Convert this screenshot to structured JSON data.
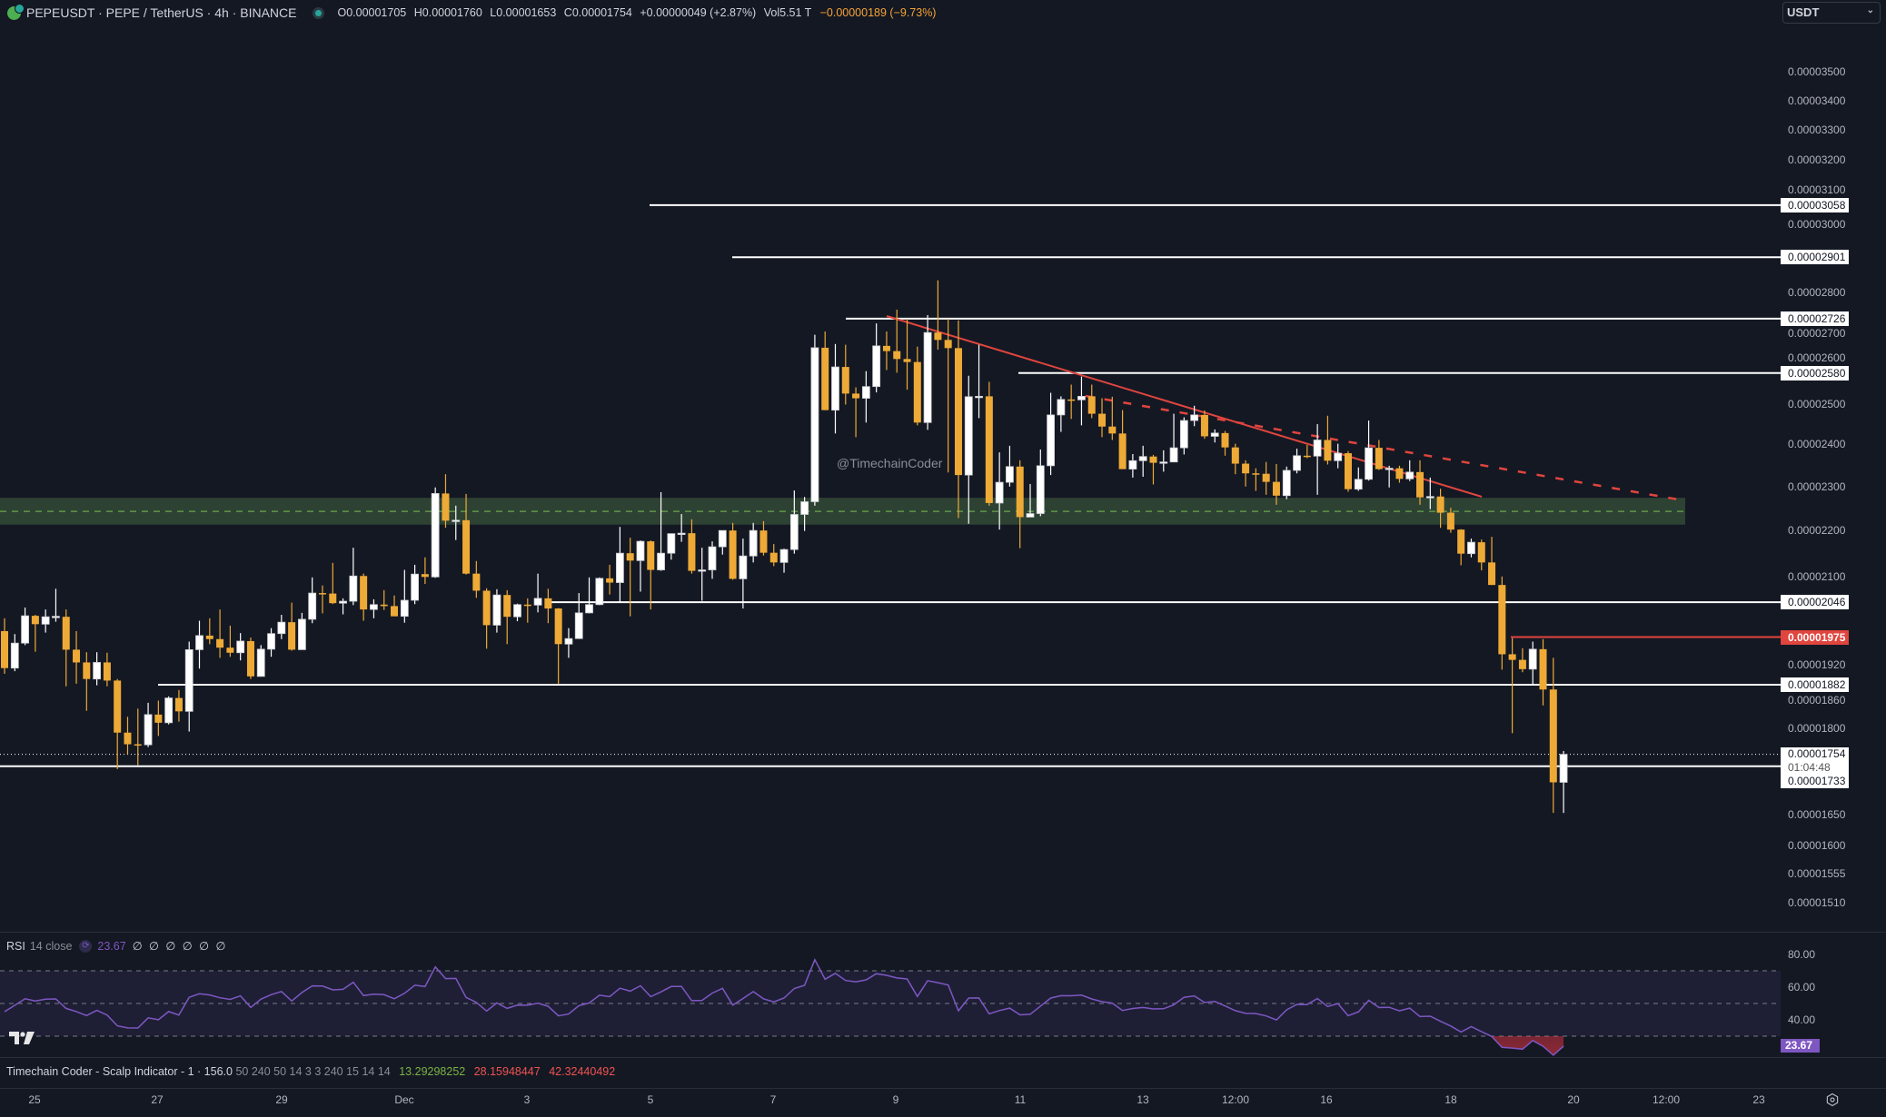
{
  "header": {
    "symbol_title": "PEPEUSDT · PEPE / TetherUS · 4h · BINANCE",
    "open_label": "O",
    "open": "0.00001705",
    "high_label": "H",
    "high": "0.00001760",
    "low_label": "L",
    "low": "0.00001653",
    "close_label": "C",
    "close": "0.00001754",
    "change": "+0.00000049 (+2.87%)",
    "vol_label": "Vol",
    "volume": "5.51 T",
    "day_change": "−0.00000189 (−9.73%)",
    "currency_select": "USDT",
    "icons": [
      "pepe-logo-icon",
      "market-status-icon",
      "chevron-down-icon"
    ]
  },
  "watermark": "@TimechainCoder",
  "colors": {
    "background": "#141823",
    "bull_candle": "#ffffff",
    "bear_candle": "#eeaa36",
    "level_line": "#ffffff",
    "resistance_line": "#e0453e",
    "zone_fill": "#2d4233",
    "zone_mid": "#6aa84f",
    "rsi_line": "#7e57c2",
    "rsi_band": "#1e1f35",
    "change_negative": "#f7a335"
  },
  "price_axis": {
    "scale": "log",
    "ticks": [
      "0.00003500",
      "0.00003400",
      "0.00003300",
      "0.00003200",
      "0.00003100",
      "0.00003000",
      "0.00002800",
      "0.00002700",
      "0.00002600",
      "0.00002500",
      "0.00002400",
      "0.00002300",
      "0.00002200",
      "0.00002100",
      "0.00001920",
      "0.00001860",
      "0.00001800",
      "0.00001650",
      "0.00001600",
      "0.00001555",
      "0.00001510"
    ]
  },
  "levels": [
    {
      "value": 3.058e-05,
      "label": "0.00003058",
      "style": "white"
    },
    {
      "value": 2.901e-05,
      "label": "0.00002901",
      "style": "white"
    },
    {
      "value": 2.726e-05,
      "label": "0.00002726",
      "style": "white"
    },
    {
      "value": 2.58e-05,
      "label": "0.00002580",
      "style": "white"
    },
    {
      "value": 2.046e-05,
      "label": "0.00002046",
      "style": "white"
    },
    {
      "value": 1.975e-05,
      "label": "0.00001975",
      "style": "red"
    },
    {
      "value": 1.882e-05,
      "label": "0.00001882",
      "style": "white"
    },
    {
      "value": 1.733e-05,
      "label": "0.00001733",
      "style": "white"
    }
  ],
  "current_price": {
    "value": 1.754e-05,
    "label": "0.00001754",
    "countdown": "01:04:48",
    "level_label": "0.00001733"
  },
  "zone": {
    "top": 2.274e-05,
    "bottom": 2.213e-05,
    "mid": 2.243e-05
  },
  "rsi": {
    "name": "RSI",
    "params": "14 close",
    "value": "23.67",
    "na_values": "∅ ∅ ∅ ∅ ∅ ∅",
    "ticks": [
      "80.00",
      "60.00",
      "40.00"
    ],
    "bands": [
      70,
      50,
      30
    ]
  },
  "indicator": {
    "name": "Timechain Coder - Scalp Indicator - 1 · 156.0",
    "params": "50 240 50 14 3 3 240 15 14 14",
    "value1": "13.29298252",
    "value2": "28.15948447",
    "value3": "42.32440492"
  },
  "time_axis": [
    "25",
    "27",
    "29",
    "Dec",
    "3",
    "5",
    "7",
    "9",
    "11",
    "13",
    "12:00",
    "16",
    "18",
    "20",
    "12:00",
    "23"
  ],
  "chart_data": {
    "type": "candlestick",
    "interval": "4h",
    "y_scale": "log",
    "ylim": [
      1.51e-05,
      3.5e-05
    ],
    "fields": [
      "open",
      "high",
      "low",
      "close"
    ],
    "candles": [
      [
        1.987e-05,
        2.013e-05,
        1.903e-05,
        1.914e-05
      ],
      [
        1.914e-05,
        1.981e-05,
        1.908e-05,
        1.963e-05
      ],
      [
        1.963e-05,
        2.035e-05,
        1.959e-05,
        2.018e-05
      ],
      [
        2.018e-05,
        2.02e-05,
        1.946e-05,
        2.001e-05
      ],
      [
        2.001e-05,
        2.031e-05,
        1.984e-05,
        2.016e-05
      ],
      [
        2.016e-05,
        2.074e-05,
        2.006e-05,
        2.017e-05
      ],
      [
        2.016e-05,
        2.031e-05,
        1.879e-05,
        1.95e-05
      ],
      [
        1.95e-05,
        1.987e-05,
        1.884e-05,
        1.925e-05
      ],
      [
        1.925e-05,
        1.945e-05,
        1.833e-05,
        1.893e-05
      ],
      [
        1.893e-05,
        1.945e-05,
        1.881e-05,
        1.925e-05
      ],
      [
        1.925e-05,
        1.944e-05,
        1.879e-05,
        1.89e-05
      ],
      [
        1.89e-05,
        1.893e-05,
        1.728e-05,
        1.793e-05
      ],
      [
        1.793e-05,
        1.822e-05,
        1.754e-05,
        1.772e-05
      ],
      [
        1.772e-05,
        1.837e-05,
        1.735e-05,
        1.771e-05
      ],
      [
        1.771e-05,
        1.848e-05,
        1.767e-05,
        1.826e-05
      ],
      [
        1.826e-05,
        1.852e-05,
        1.787e-05,
        1.811e-05
      ],
      [
        1.811e-05,
        1.86e-05,
        1.808e-05,
        1.857e-05
      ],
      [
        1.857e-05,
        1.872e-05,
        1.813e-05,
        1.832e-05
      ],
      [
        1.832e-05,
        1.966e-05,
        1.795e-05,
        1.95e-05
      ],
      [
        1.95e-05,
        2.008e-05,
        1.913e-05,
        1.978e-05
      ],
      [
        1.978e-05,
        2.013e-05,
        1.961e-05,
        1.971e-05
      ],
      [
        1.971e-05,
        2.031e-05,
        1.934e-05,
        1.954e-05
      ],
      [
        1.954e-05,
        1.998e-05,
        1.936e-05,
        1.944e-05
      ],
      [
        1.944e-05,
        1.983e-05,
        1.929e-05,
        1.967e-05
      ],
      [
        1.967e-05,
        1.974e-05,
        1.893e-05,
        1.898e-05
      ],
      [
        1.898e-05,
        1.959e-05,
        1.898e-05,
        1.951e-05
      ],
      [
        1.951e-05,
        1.993e-05,
        1.936e-05,
        1.982e-05
      ],
      [
        1.982e-05,
        2.02e-05,
        1.971e-05,
        2.005e-05
      ],
      [
        2.005e-05,
        2.045e-05,
        1.948e-05,
        1.95e-05
      ],
      [
        1.95e-05,
        2.024e-05,
        1.95e-05,
        2.011e-05
      ],
      [
        2.011e-05,
        2.098e-05,
        2.003e-05,
        2.065e-05
      ],
      [
        2.065e-05,
        2.081e-05,
        2.023e-05,
        2.064e-05
      ],
      [
        2.064e-05,
        2.129e-05,
        2.042e-05,
        2.044e-05
      ],
      [
        2.044e-05,
        2.054e-05,
        2.021e-05,
        2.048e-05
      ],
      [
        2.048e-05,
        2.162e-05,
        2.04e-05,
        2.101e-05
      ],
      [
        2.101e-05,
        2.106e-05,
        2.008e-05,
        2.031e-05
      ],
      [
        2.031e-05,
        2.052e-05,
        2.013e-05,
        2.041e-05
      ],
      [
        2.041e-05,
        2.071e-05,
        2.03e-05,
        2.038e-05
      ],
      [
        2.038e-05,
        2.06e-05,
        2.017e-05,
        2.017e-05
      ],
      [
        2.017e-05,
        2.114e-05,
        2.004e-05,
        2.05e-05
      ],
      [
        2.05e-05,
        2.125e-05,
        2.042e-05,
        2.105e-05
      ],
      [
        2.105e-05,
        2.141e-05,
        2.084e-05,
        2.099e-05
      ],
      [
        2.099e-05,
        2.298e-05,
        2.097e-05,
        2.284e-05
      ],
      [
        2.284e-05,
        2.329e-05,
        2.206e-05,
        2.222e-05
      ],
      [
        2.222e-05,
        2.256e-05,
        2.179e-05,
        2.223e-05
      ],
      [
        2.223e-05,
        2.283e-05,
        2.104e-05,
        2.106e-05
      ],
      [
        2.106e-05,
        2.133e-05,
        2.055e-05,
        2.07e-05
      ],
      [
        2.07e-05,
        2.075e-05,
        1.952e-05,
        1.999e-05
      ],
      [
        1.999e-05,
        2.073e-05,
        1.984e-05,
        2.061e-05
      ],
      [
        2.061e-05,
        2.071e-05,
        1.961e-05,
        2.016e-05
      ],
      [
        2.016e-05,
        2.043e-05,
        2.007e-05,
        2.041e-05
      ],
      [
        2.041e-05,
        2.054e-05,
        2.004e-05,
        2.04e-05
      ],
      [
        2.04e-05,
        2.106e-05,
        2.025e-05,
        2.054e-05
      ],
      [
        2.054e-05,
        2.074e-05,
        2.003e-05,
        2.033e-05
      ],
      [
        2.033e-05,
        2.034e-05,
        1.884e-05,
        1.961e-05
      ],
      [
        1.961e-05,
        1.993e-05,
        1.934e-05,
        1.972e-05
      ],
      [
        1.972e-05,
        2.065e-05,
        1.972e-05,
        2.024e-05
      ],
      [
        2.024e-05,
        2.098e-05,
        2.023e-05,
        2.041e-05
      ],
      [
        2.041e-05,
        2.098e-05,
        2.04e-05,
        2.096e-05
      ],
      [
        2.096e-05,
        2.125e-05,
        2.062e-05,
        2.087e-05
      ],
      [
        2.087e-05,
        2.208e-05,
        2.047e-05,
        2.15e-05
      ],
      [
        2.15e-05,
        2.184e-05,
        2.017e-05,
        2.134e-05
      ],
      [
        2.134e-05,
        2.178e-05,
        2.068e-05,
        2.176e-05
      ],
      [
        2.176e-05,
        2.178e-05,
        2.031e-05,
        2.114e-05
      ],
      [
        2.114e-05,
        2.287e-05,
        2.112e-05,
        2.15e-05
      ],
      [
        2.15e-05,
        2.193e-05,
        2.136e-05,
        2.193e-05
      ],
      [
        2.193e-05,
        2.237e-05,
        2.175e-05,
        2.194e-05
      ],
      [
        2.194e-05,
        2.225e-05,
        2.106e-05,
        2.112e-05
      ],
      [
        2.112e-05,
        2.162e-05,
        2.049e-05,
        2.114e-05
      ],
      [
        2.114e-05,
        2.176e-05,
        2.095e-05,
        2.164e-05
      ],
      [
        2.164e-05,
        2.2e-05,
        2.147e-05,
        2.2e-05
      ],
      [
        2.2e-05,
        2.217e-05,
        2.093e-05,
        2.095e-05
      ],
      [
        2.095e-05,
        2.182e-05,
        2.033e-05,
        2.144e-05
      ],
      [
        2.144e-05,
        2.217e-05,
        2.13e-05,
        2.2e-05
      ],
      [
        2.2e-05,
        2.221e-05,
        2.145e-05,
        2.151e-05
      ],
      [
        2.151e-05,
        2.17e-05,
        2.122e-05,
        2.13e-05
      ],
      [
        2.13e-05,
        2.16e-05,
        2.108e-05,
        2.158e-05
      ],
      [
        2.158e-05,
        2.291e-05,
        2.149e-05,
        2.236e-05
      ],
      [
        2.236e-05,
        2.276e-05,
        2.199e-05,
        2.265e-05
      ],
      [
        2.265e-05,
        2.682e-05,
        2.256e-05,
        2.647e-05
      ],
      [
        2.647e-05,
        2.691e-05,
        2.485e-05,
        2.485e-05
      ],
      [
        2.485e-05,
        2.657e-05,
        2.427e-05,
        2.596e-05
      ],
      [
        2.596e-05,
        2.655e-05,
        2.499e-05,
        2.527e-05
      ],
      [
        2.527e-05,
        2.543e-05,
        2.418e-05,
        2.515e-05
      ],
      [
        2.515e-05,
        2.585e-05,
        2.454e-05,
        2.545e-05
      ],
      [
        2.545e-05,
        2.713e-05,
        2.53e-05,
        2.652e-05
      ],
      [
        2.652e-05,
        2.691e-05,
        2.588e-05,
        2.638e-05
      ],
      [
        2.638e-05,
        2.751e-05,
        2.581e-05,
        2.617e-05
      ],
      [
        2.617e-05,
        2.726e-05,
        2.537e-05,
        2.609e-05
      ],
      [
        2.609e-05,
        2.65e-05,
        2.447e-05,
        2.454e-05
      ],
      [
        2.454e-05,
        2.736e-05,
        2.436e-05,
        2.688e-05
      ],
      [
        2.688e-05,
        2.834e-05,
        2.642e-05,
        2.668e-05
      ],
      [
        2.668e-05,
        2.726e-05,
        2.333e-05,
        2.646e-05
      ],
      [
        2.646e-05,
        2.721e-05,
        2.228e-05,
        2.327e-05
      ],
      [
        2.327e-05,
        2.573e-05,
        2.215e-05,
        2.519e-05
      ],
      [
        2.519e-05,
        2.655e-05,
        2.465e-05,
        2.52e-05
      ],
      [
        2.52e-05,
        2.557e-05,
        2.256e-05,
        2.262e-05
      ],
      [
        2.262e-05,
        2.381e-05,
        2.202e-05,
        2.31e-05
      ],
      [
        2.31e-05,
        2.397e-05,
        2.3e-05,
        2.347e-05
      ],
      [
        2.347e-05,
        2.362e-05,
        2.161e-05,
        2.23e-05
      ],
      [
        2.23e-05,
        2.306e-05,
        2.23e-05,
        2.238e-05
      ],
      [
        2.238e-05,
        2.388e-05,
        2.232e-05,
        2.349e-05
      ],
      [
        2.349e-05,
        2.529e-05,
        2.327e-05,
        2.473e-05
      ],
      [
        2.473e-05,
        2.52e-05,
        2.431e-05,
        2.512e-05
      ],
      [
        2.512e-05,
        2.55e-05,
        2.463e-05,
        2.511e-05
      ],
      [
        2.511e-05,
        2.571e-05,
        2.447e-05,
        2.52e-05
      ],
      [
        2.52e-05,
        2.55e-05,
        2.465e-05,
        2.476e-05
      ],
      [
        2.476e-05,
        2.515e-05,
        2.418e-05,
        2.444e-05
      ],
      [
        2.444e-05,
        2.519e-05,
        2.411e-05,
        2.427e-05
      ],
      [
        2.427e-05,
        2.485e-05,
        2.341e-05,
        2.341e-05
      ],
      [
        2.341e-05,
        2.377e-05,
        2.321e-05,
        2.361e-05
      ],
      [
        2.361e-05,
        2.397e-05,
        2.323e-05,
        2.371e-05
      ],
      [
        2.371e-05,
        2.375e-05,
        2.305e-05,
        2.356e-05
      ],
      [
        2.356e-05,
        2.386e-05,
        2.335e-05,
        2.358e-05
      ],
      [
        2.358e-05,
        2.476e-05,
        2.358e-05,
        2.392e-05
      ],
      [
        2.392e-05,
        2.467e-05,
        2.376e-05,
        2.459e-05
      ],
      [
        2.459e-05,
        2.496e-05,
        2.445e-05,
        2.473e-05
      ],
      [
        2.473e-05,
        2.484e-05,
        2.414e-05,
        2.42e-05
      ],
      [
        2.42e-05,
        2.437e-05,
        2.405e-05,
        2.428e-05
      ],
      [
        2.428e-05,
        2.433e-05,
        2.373e-05,
        2.393e-05
      ],
      [
        2.393e-05,
        2.402e-05,
        2.329e-05,
        2.354e-05
      ],
      [
        2.354e-05,
        2.362e-05,
        2.3e-05,
        2.331e-05
      ],
      [
        2.331e-05,
        2.343e-05,
        2.29e-05,
        2.33e-05
      ],
      [
        2.33e-05,
        2.358e-05,
        2.281e-05,
        2.311e-05
      ],
      [
        2.311e-05,
        2.353e-05,
        2.258e-05,
        2.279e-05
      ],
      [
        2.279e-05,
        2.347e-05,
        2.271e-05,
        2.338e-05
      ],
      [
        2.338e-05,
        2.39e-05,
        2.331e-05,
        2.373e-05
      ],
      [
        2.373e-05,
        2.399e-05,
        2.367e-05,
        2.372e-05
      ],
      [
        2.372e-05,
        2.45e-05,
        2.281e-05,
        2.411e-05
      ],
      [
        2.411e-05,
        2.471e-05,
        2.352e-05,
        2.361e-05
      ],
      [
        2.361e-05,
        2.402e-05,
        2.343e-05,
        2.379e-05
      ],
      [
        2.379e-05,
        2.384e-05,
        2.288e-05,
        2.294e-05
      ],
      [
        2.294e-05,
        2.345e-05,
        2.29e-05,
        2.317e-05
      ],
      [
        2.317e-05,
        2.459e-05,
        2.314e-05,
        2.392e-05
      ],
      [
        2.392e-05,
        2.411e-05,
        2.339e-05,
        2.341e-05
      ],
      [
        2.341e-05,
        2.349e-05,
        2.298e-05,
        2.343e-05
      ],
      [
        2.343e-05,
        2.349e-05,
        2.309e-05,
        2.318e-05
      ],
      [
        2.318e-05,
        2.362e-05,
        2.313e-05,
        2.334e-05
      ],
      [
        2.334e-05,
        2.362e-05,
        2.258e-05,
        2.275e-05
      ],
      [
        2.275e-05,
        2.321e-05,
        2.248e-05,
        2.277e-05
      ],
      [
        2.277e-05,
        2.295e-05,
        2.206e-05,
        2.24e-05
      ],
      [
        2.24e-05,
        2.251e-05,
        2.195e-05,
        2.202e-05
      ],
      [
        2.202e-05,
        2.203e-05,
        2.124e-05,
        2.149e-05
      ],
      [
        2.149e-05,
        2.182e-05,
        2.141e-05,
        2.174e-05
      ],
      [
        2.174e-05,
        2.18e-05,
        2.113e-05,
        2.13e-05
      ],
      [
        2.13e-05,
        2.186e-05,
        2.082e-05,
        2.082e-05
      ],
      [
        2.082e-05,
        2.1e-05,
        1.911e-05,
        1.941e-05
      ],
      [
        1.941e-05,
        1.973e-05,
        1.792e-05,
        1.93e-05
      ],
      [
        1.93e-05,
        1.953e-05,
        1.906e-05,
        1.912e-05
      ],
      [
        1.912e-05,
        1.966e-05,
        1.882e-05,
        1.951e-05
      ],
      [
        1.951e-05,
        1.971e-05,
        1.843e-05,
        1.873e-05
      ],
      [
        1.873e-05,
        1.934e-05,
        1.653e-05,
        1.705e-05
      ],
      [
        1.705e-05,
        1.76e-05,
        1.653e-05,
        1.754e-05
      ]
    ]
  }
}
